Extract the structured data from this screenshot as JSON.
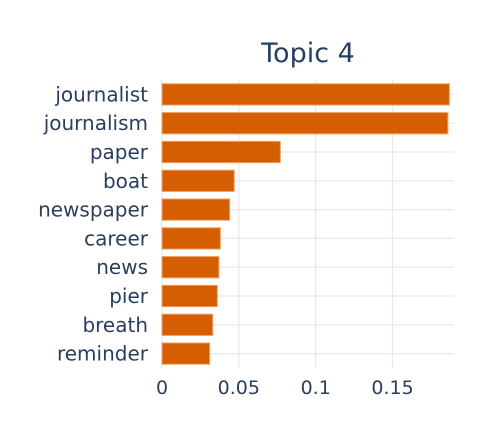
{
  "chart_data": {
    "type": "bar",
    "orientation": "horizontal",
    "title": "Topic 4",
    "categories": [
      "journalist",
      "journalism",
      "paper",
      "boat",
      "newspaper",
      "career",
      "news",
      "pier",
      "breath",
      "reminder"
    ],
    "values": [
      0.187,
      0.186,
      0.077,
      0.047,
      0.044,
      0.038,
      0.037,
      0.036,
      0.033,
      0.031
    ],
    "xlabel": "",
    "ylabel": "",
    "xlim": [
      0,
      0.19
    ],
    "xticks": [
      0,
      0.05,
      0.1,
      0.15
    ],
    "xtick_labels": [
      "0",
      "0.05",
      "0.1",
      "0.15"
    ],
    "grid": true,
    "bar_color": "#d55e00"
  }
}
